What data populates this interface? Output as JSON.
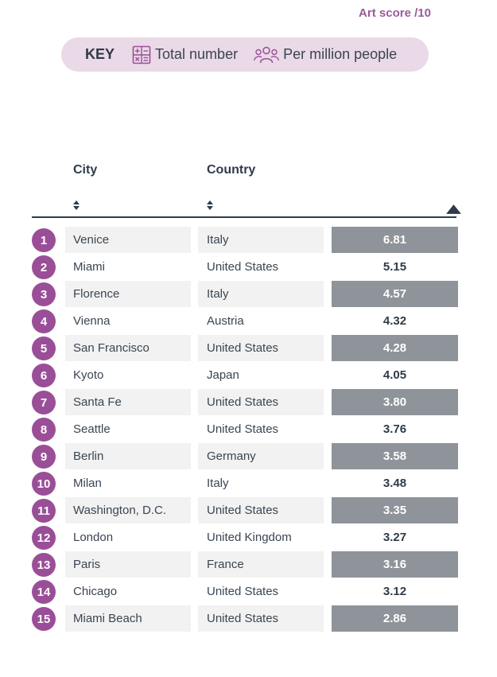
{
  "key": {
    "title": "KEY",
    "total_label": "Total number",
    "per_million_label": "Per million people"
  },
  "table": {
    "headers": {
      "city": "City",
      "country": "Country",
      "score": "Art score /10"
    },
    "colors": {
      "accent": "#9b4e98",
      "shade": "#8e9499",
      "row_bg": "#f2f2f2"
    },
    "rows": [
      {
        "rank": "1",
        "city": "Venice",
        "country": "Italy",
        "score": "6.81"
      },
      {
        "rank": "2",
        "city": "Miami",
        "country": "United States",
        "score": "5.15"
      },
      {
        "rank": "3",
        "city": "Florence",
        "country": "Italy",
        "score": "4.57"
      },
      {
        "rank": "4",
        "city": "Vienna",
        "country": "Austria",
        "score": "4.32"
      },
      {
        "rank": "5",
        "city": "San Francisco",
        "country": "United States",
        "score": "4.28"
      },
      {
        "rank": "6",
        "city": "Kyoto",
        "country": "Japan",
        "score": "4.05"
      },
      {
        "rank": "7",
        "city": "Santa Fe",
        "country": "United States",
        "score": "3.80"
      },
      {
        "rank": "8",
        "city": "Seattle",
        "country": "United States",
        "score": "3.76"
      },
      {
        "rank": "9",
        "city": "Berlin",
        "country": "Germany",
        "score": "3.58"
      },
      {
        "rank": "10",
        "city": "Milan",
        "country": "Italy",
        "score": "3.48"
      },
      {
        "rank": "11",
        "city": "Washington, D.C.",
        "country": "United States",
        "score": "3.35"
      },
      {
        "rank": "12",
        "city": "London",
        "country": "United Kingdom",
        "score": "3.27"
      },
      {
        "rank": "13",
        "city": "Paris",
        "country": "France",
        "score": "3.16"
      },
      {
        "rank": "14",
        "city": "Chicago",
        "country": "United States",
        "score": "3.12"
      },
      {
        "rank": "15",
        "city": "Miami Beach",
        "country": "United States",
        "score": "2.86"
      }
    ]
  }
}
